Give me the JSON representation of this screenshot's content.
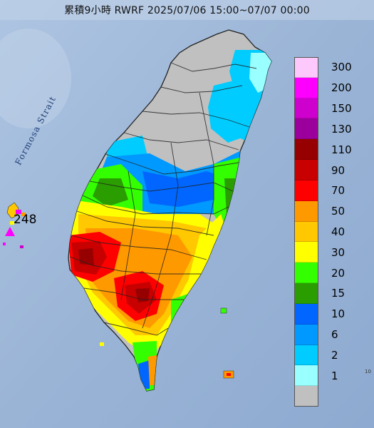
{
  "title": "累積9小時 RWRF 2025/07/06 15:00~07/07 00:00",
  "sea_label": "Formosa Strait",
  "island_max": {
    "value": "248",
    "symbol": "magenta-triangle",
    "color": "#ff00ff"
  },
  "corner_note": "10",
  "legend": {
    "items": [
      {
        "label": "300",
        "color": "#fdc9fd"
      },
      {
        "label": "200",
        "color": "#fd00fd"
      },
      {
        "label": "150",
        "color": "#ce00ce"
      },
      {
        "label": "130",
        "color": "#9c009c"
      },
      {
        "label": "110",
        "color": "#960000"
      },
      {
        "label": "90",
        "color": "#c80000"
      },
      {
        "label": "70",
        "color": "#ff0000"
      },
      {
        "label": "50",
        "color": "#ff9900"
      },
      {
        "label": "40",
        "color": "#ffc800"
      },
      {
        "label": "30",
        "color": "#ffff00"
      },
      {
        "label": "20",
        "color": "#33ff00"
      },
      {
        "label": "15",
        "color": "#2a9d00"
      },
      {
        "label": "10",
        "color": "#0066ff"
      },
      {
        "label": "6",
        "color": "#0099ff"
      },
      {
        "label": "2",
        "color": "#00ccff"
      },
      {
        "label": "1",
        "color": "#99ffff"
      },
      {
        "label": "",
        "color": "#c0c0c0"
      }
    ]
  },
  "colors": {
    "sea": "#9fb9d9",
    "land_no_rain": "#c0c0c0",
    "boundary": "#222222"
  }
}
